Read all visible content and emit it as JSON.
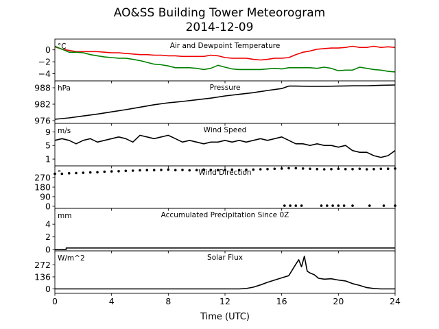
{
  "figure": {
    "title_line1": "AO&SS Building Tower Meteorogram",
    "title_line2": "2014-12-09",
    "xlabel": "Time (UTC)",
    "xlim": [
      0,
      24
    ],
    "xticks": [
      0,
      4,
      8,
      12,
      16,
      20,
      24
    ]
  },
  "chart_data": [
    {
      "type": "line",
      "title": "Air and Dewpoint Temperature",
      "unit": "°C",
      "ylim": [
        -5.2,
        1.8
      ],
      "yticks": [
        0,
        -2,
        -4
      ],
      "series": [
        {
          "color": "#ee0000",
          "x": [
            0,
            0.5,
            1,
            1.5,
            2,
            2.5,
            3,
            3.5,
            4,
            4.5,
            5,
            5.5,
            6,
            6.5,
            7,
            7.5,
            8,
            8.5,
            9,
            9.5,
            10,
            10.5,
            11,
            11.5,
            12,
            12.5,
            13,
            13.5,
            14,
            14.5,
            15,
            15.5,
            16,
            16.5,
            17,
            17.5,
            18,
            18.5,
            19,
            19.5,
            20,
            20.5,
            21,
            21.5,
            22,
            22.5,
            23,
            23.5,
            24
          ],
          "values": [
            0.5,
            0.1,
            -0.1,
            -0.3,
            -0.3,
            -0.3,
            -0.3,
            -0.4,
            -0.5,
            -0.5,
            -0.6,
            -0.7,
            -0.8,
            -0.8,
            -0.9,
            -0.9,
            -1.0,
            -1.0,
            -1.1,
            -1.1,
            -1.1,
            -1.1,
            -0.9,
            -1.0,
            -1.3,
            -1.4,
            -1.4,
            -1.4,
            -1.6,
            -1.7,
            -1.6,
            -1.4,
            -1.4,
            -1.3,
            -0.8,
            -0.4,
            -0.2,
            0.1,
            0.2,
            0.3,
            0.3,
            0.4,
            0.6,
            0.4,
            0.4,
            0.6,
            0.4,
            0.5,
            0.4
          ]
        },
        {
          "color": "#008000",
          "x": [
            0,
            0.5,
            1,
            1.5,
            2,
            2.5,
            3,
            3.5,
            4,
            4.5,
            5,
            5.5,
            6,
            6.5,
            7,
            7.5,
            8,
            8.5,
            9,
            9.5,
            10,
            10.5,
            11,
            11.5,
            12,
            12.5,
            13,
            13.5,
            14,
            14.5,
            15,
            15.5,
            16,
            16.5,
            17,
            17.5,
            18,
            18.5,
            19,
            19.5,
            20,
            20.5,
            21,
            21.5,
            22,
            22.5,
            23,
            23.5,
            24
          ],
          "values": [
            0.6,
            0.1,
            -0.4,
            -0.4,
            -0.5,
            -0.8,
            -1.0,
            -1.2,
            -1.3,
            -1.4,
            -1.4,
            -1.6,
            -1.8,
            -2.1,
            -2.4,
            -2.5,
            -2.7,
            -3.0,
            -3.0,
            -3.0,
            -3.1,
            -3.3,
            -3.1,
            -2.6,
            -2.9,
            -3.2,
            -3.3,
            -3.3,
            -3.3,
            -3.3,
            -3.2,
            -3.1,
            -3.2,
            -3.0,
            -3.0,
            -3.0,
            -3.0,
            -3.1,
            -2.9,
            -3.1,
            -3.5,
            -3.4,
            -3.4,
            -2.9,
            -3.1,
            -3.3,
            -3.4,
            -3.6,
            -3.7
          ]
        }
      ]
    },
    {
      "type": "line",
      "title": "Pressure",
      "unit": "hPa",
      "ylim": [
        975,
        990.5
      ],
      "yticks": [
        988,
        982,
        976
      ],
      "series": [
        {
          "color": "#000000",
          "x": [
            0,
            1,
            2,
            3,
            4,
            5,
            6,
            7,
            8,
            9,
            10,
            11,
            12,
            13,
            14,
            15,
            16,
            16.5,
            17,
            18,
            19,
            20,
            21,
            22,
            23,
            24
          ],
          "values": [
            976.5,
            977.0,
            977.7,
            978.4,
            979.2,
            980.0,
            980.9,
            981.8,
            982.5,
            983.0,
            983.6,
            984.2,
            985.0,
            985.6,
            986.2,
            987.0,
            987.7,
            988.6,
            988.6,
            988.5,
            988.5,
            988.6,
            988.7,
            988.7,
            988.9,
            989.0
          ]
        }
      ]
    },
    {
      "type": "line",
      "title": "Wind Speed",
      "unit": "m/s",
      "ylim": [
        -1,
        11.5
      ],
      "yticks": [
        9,
        5,
        1
      ],
      "series": [
        {
          "color": "#000000",
          "x": [
            0,
            0.5,
            1,
            1.5,
            2,
            2.5,
            3,
            3.5,
            4,
            4.5,
            5,
            5.5,
            6,
            6.5,
            7,
            7.5,
            8,
            8.5,
            9,
            9.5,
            10,
            10.5,
            11,
            11.5,
            12,
            12.5,
            13,
            13.5,
            14,
            14.5,
            15,
            15.5,
            16,
            16.5,
            17,
            17.5,
            18,
            18.5,
            19,
            19.5,
            20,
            20.5,
            21,
            21.5,
            22,
            22.5,
            23,
            23.5,
            24
          ],
          "values": [
            6.5,
            7.0,
            6.5,
            5.5,
            6.5,
            7.0,
            6.0,
            6.5,
            7.0,
            7.5,
            7.0,
            6.0,
            8.0,
            7.5,
            7.0,
            7.5,
            8.0,
            7.0,
            6.0,
            6.5,
            6.0,
            5.5,
            6.0,
            6.0,
            6.5,
            6.0,
            6.5,
            6.0,
            6.5,
            7.0,
            6.5,
            7.0,
            7.5,
            6.5,
            5.5,
            5.5,
            5.0,
            5.5,
            5.0,
            5.0,
            4.5,
            5.0,
            3.5,
            3.0,
            3.0,
            2.0,
            1.5,
            2.0,
            3.5
          ]
        }
      ]
    },
    {
      "type": "scatter",
      "title": "Wind Direction",
      "unit": "°",
      "ylim": [
        -20,
        380
      ],
      "yticks": [
        270,
        180,
        90,
        0
      ],
      "series": [
        {
          "color": "#000000",
          "x": [
            0,
            0.5,
            1,
            1.5,
            2,
            2.5,
            3,
            3.5,
            4,
            4.5,
            5,
            5.5,
            6,
            6.5,
            7,
            7.5,
            8,
            8.5,
            9,
            9.5,
            10,
            10.5,
            11,
            11.5,
            12,
            12.5,
            13,
            13.5,
            14,
            14.5,
            15,
            15.5,
            16,
            16.5,
            17,
            17.5,
            18,
            18.5,
            19,
            19.5,
            20,
            20.5,
            21,
            21.5,
            22,
            22.5,
            23,
            23.5,
            24,
            16.2,
            16.6,
            17,
            17.4,
            18.8,
            19.2,
            19.6,
            20,
            20.4,
            21,
            22.2,
            23.2,
            24
          ],
          "values": [
            305,
            305,
            310,
            312,
            315,
            318,
            320,
            325,
            328,
            330,
            333,
            335,
            338,
            340,
            340,
            342,
            345,
            340,
            342,
            338,
            340,
            345,
            342,
            340,
            343,
            345,
            340,
            343,
            345,
            348,
            350,
            352,
            355,
            358,
            358,
            355,
            352,
            350,
            348,
            350,
            352,
            350,
            350,
            352,
            348,
            350,
            352,
            353,
            355,
            5,
            5,
            5,
            5,
            5,
            5,
            5,
            5,
            5,
            5,
            5,
            5,
            5
          ]
        }
      ]
    },
    {
      "type": "line",
      "title": "Accumulated Precipitation Since 0Z",
      "unit": "mm",
      "ylim": [
        -0.2,
        6.5
      ],
      "yticks": [
        4,
        2,
        0
      ],
      "series": [
        {
          "color": "#000000",
          "x": [
            0,
            0.8,
            0.8,
            24
          ],
          "values": [
            0.0,
            0.0,
            0.25,
            0.25
          ]
        }
      ]
    },
    {
      "type": "line",
      "title": "Solar Flux",
      "unit": "W/m^2",
      "ylim": [
        -50,
        430
      ],
      "yticks": [
        272,
        136,
        0
      ],
      "series": [
        {
          "color": "#000000",
          "x": [
            0,
            2,
            4,
            6,
            8,
            10,
            12,
            13,
            13.5,
            14,
            14.5,
            15,
            15.5,
            16,
            16.5,
            17,
            17.2,
            17.4,
            17.6,
            17.8,
            18,
            18.3,
            18.6,
            19,
            19.5,
            20,
            20.5,
            21,
            21.5,
            22,
            22.5,
            23,
            24
          ],
          "values": [
            0,
            0,
            0,
            0,
            0,
            0,
            0,
            0,
            5,
            20,
            45,
            75,
            100,
            125,
            150,
            280,
            330,
            250,
            370,
            200,
            180,
            160,
            120,
            110,
            115,
            100,
            90,
            60,
            40,
            15,
            5,
            0,
            0
          ]
        }
      ]
    }
  ]
}
